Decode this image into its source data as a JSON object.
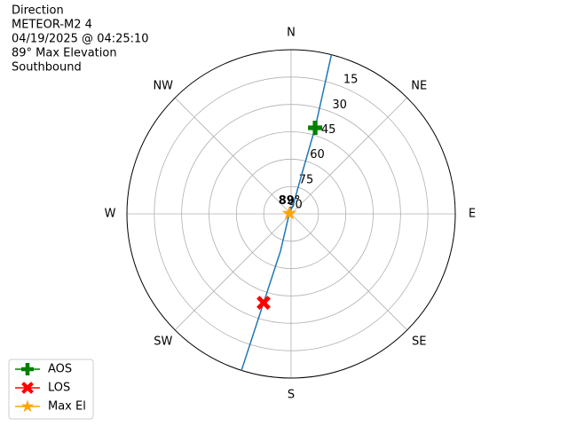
{
  "chart_data": {
    "type": "polar",
    "title_lines": [
      "Direction",
      "METEOR-M2 4",
      "04/19/2025 @ 04:25:10",
      "89° Max Elevation",
      "Southbound"
    ],
    "annotation": "89°",
    "xlim": [
      0,
      360
    ],
    "xticks": [
      {
        "value": 0,
        "label": "N"
      },
      {
        "value": 45,
        "label": "NE"
      },
      {
        "value": 90,
        "label": "E"
      },
      {
        "value": 135,
        "label": "SE"
      },
      {
        "value": 180,
        "label": "S"
      },
      {
        "value": 225,
        "label": "SW"
      },
      {
        "value": 270,
        "label": "W"
      },
      {
        "value": 315,
        "label": "NW"
      }
    ],
    "ylim": [
      90,
      0
    ],
    "yticks": [
      15,
      30,
      45,
      60,
      75,
      90
    ],
    "grid": true,
    "legend": "lower left",
    "track": {
      "color": "#1f77b4",
      "x": [
        14.2,
        15.6,
        15.2,
        12.5,
        285,
        195.9,
        197.2,
        197.6
      ],
      "values": [
        0,
        41,
        65.8,
        85.5,
        89,
        68.7,
        39,
        0
      ]
    },
    "series": [
      {
        "name": "AOS",
        "color": "green",
        "marker": "plus",
        "x": [
          15.6
        ],
        "values": [
          41
        ]
      },
      {
        "name": "LOS",
        "color": "red",
        "marker": "x",
        "x": [
          197.2
        ],
        "values": [
          39
        ]
      },
      {
        "name": "Max El",
        "color": "orange",
        "marker": "star",
        "x": [
          285
        ],
        "values": [
          89
        ]
      }
    ]
  }
}
